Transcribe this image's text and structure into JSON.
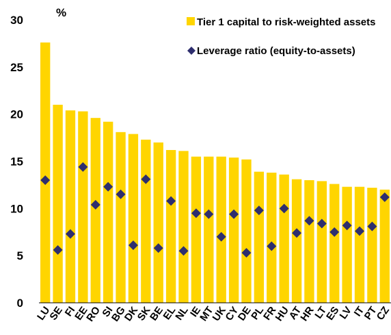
{
  "chart_data": {
    "type": "bar",
    "title": "",
    "xlabel": "",
    "ylabel": "",
    "unit_label": "%",
    "ylim": [
      0,
      30
    ],
    "yticks": [
      0,
      5,
      10,
      15,
      20,
      25,
      30
    ],
    "categories": [
      "LU",
      "SE",
      "FI",
      "EE",
      "RO",
      "SI",
      "BG",
      "DK",
      "SK",
      "BE",
      "EL",
      "NL",
      "IE",
      "MT",
      "UK",
      "CY",
      "DE",
      "PL",
      "FR",
      "HU",
      "AT",
      "HR",
      "LT",
      "ES",
      "LV",
      "IT",
      "PT",
      "CZ"
    ],
    "series": [
      {
        "name": "Tier 1 capital to risk-weighted assets",
        "type": "bar",
        "color": "#FFD500",
        "values": [
          27.6,
          21.0,
          20.4,
          20.3,
          19.6,
          19.2,
          18.1,
          17.9,
          17.3,
          17.0,
          16.2,
          16.1,
          15.5,
          15.5,
          15.5,
          15.4,
          15.2,
          13.9,
          13.8,
          13.6,
          13.1,
          13.0,
          12.9,
          12.6,
          12.3,
          12.3,
          12.2,
          12.0
        ]
      },
      {
        "name": "Leverage ratio (equity-to-assets)",
        "type": "scatter",
        "marker": "diamond",
        "color": "#2E2E6E",
        "values": [
          13.0,
          5.6,
          7.3,
          14.4,
          10.4,
          12.3,
          11.5,
          6.1,
          13.1,
          5.8,
          10.8,
          5.5,
          9.5,
          9.4,
          7.0,
          9.4,
          5.3,
          9.8,
          6.0,
          10.0,
          7.4,
          8.7,
          8.4,
          7.5,
          8.2,
          7.6,
          8.1,
          11.2
        ]
      }
    ],
    "legend": {
      "position": "top-right"
    },
    "grid": false
  }
}
